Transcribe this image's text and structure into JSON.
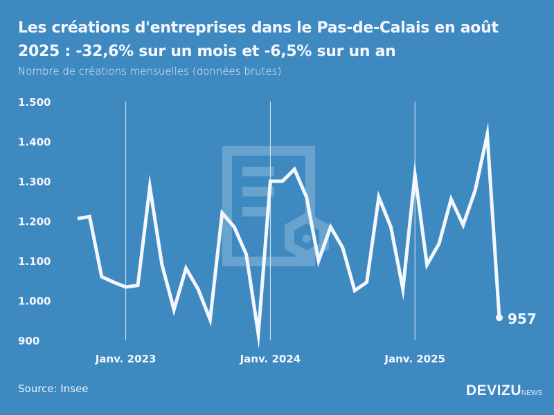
{
  "header": {
    "title": "Les créations d'entreprises dans le Pas-de-Calais en août 2025 : -32,6% sur un mois et -6,5% sur un an",
    "subtitle": "Nombre de créations mensuelles (données brutes)"
  },
  "footer": {
    "source": "Source: Insee",
    "logo_main": "DEVIZU",
    "logo_suffix": "NEWS"
  },
  "colors": {
    "background": "#3d89c0",
    "line": "#f5f7ff"
  },
  "chart_data": {
    "type": "line",
    "title": "Les créations d'entreprises dans le Pas-de-Calais en août 2025 : -32,6% sur un mois et -6,5% sur un an",
    "ylabel": "Nombre de créations mensuelles (données brutes)",
    "xlabel": "",
    "ylim": [
      900,
      1500
    ],
    "yticks": [
      900,
      1000,
      1100,
      1200,
      1300,
      1400,
      1500
    ],
    "ytick_labels": [
      "900",
      "1.000",
      "1.100",
      "1.200",
      "1.300",
      "1.400",
      "1.500"
    ],
    "xtick_labels": [
      {
        "label": "Janv. 2023",
        "index": 4
      },
      {
        "label": "Janv. 2024",
        "index": 16
      },
      {
        "label": "Janv. 2025",
        "index": 28
      }
    ],
    "x": [
      "2022-09",
      "2022-10",
      "2022-11",
      "2022-12",
      "2023-01",
      "2023-02",
      "2023-03",
      "2023-04",
      "2023-05",
      "2023-06",
      "2023-07",
      "2023-08",
      "2023-09",
      "2023-10",
      "2023-11",
      "2023-12",
      "2024-01",
      "2024-02",
      "2024-03",
      "2024-04",
      "2024-05",
      "2024-06",
      "2024-07",
      "2024-08",
      "2024-09",
      "2024-10",
      "2024-11",
      "2024-12",
      "2025-01",
      "2025-02",
      "2025-03",
      "2025-04",
      "2025-05",
      "2025-06",
      "2025-07",
      "2025-08"
    ],
    "series": [
      {
        "name": "Créations d'entreprises",
        "values": [
          1206,
          1211,
          1060,
          1046,
          1034,
          1038,
          1286,
          1091,
          977,
          1081,
          1029,
          952,
          1220,
          1185,
          1116,
          916,
          1300,
          1300,
          1330,
          1260,
          1100,
          1185,
          1133,
          1025,
          1046,
          1260,
          1185,
          1029,
          1316,
          1090,
          1143,
          1255,
          1190,
          1277,
          1417,
          957
        ]
      }
    ],
    "annotations": [
      {
        "index": 35,
        "label": "957"
      }
    ],
    "grid": "vertical lines at January",
    "legend": "none"
  }
}
